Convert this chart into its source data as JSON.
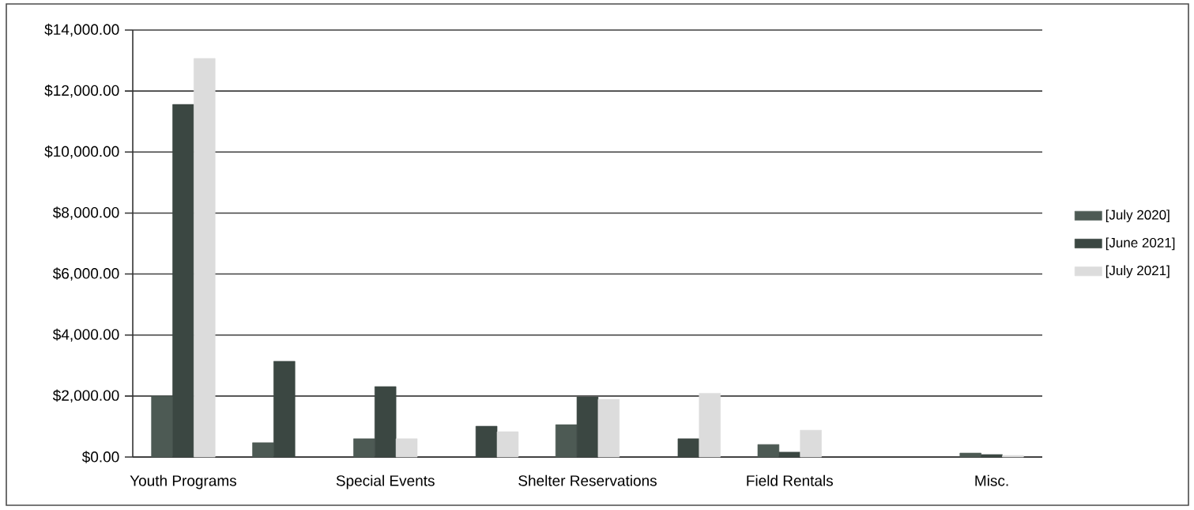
{
  "chart_data": {
    "type": "bar",
    "categories": [
      "Youth Programs",
      null,
      "Special Events",
      null,
      "Shelter Reservations",
      null,
      "Field Rentals",
      null,
      "Misc."
    ],
    "series": [
      {
        "name": "[July 2020]",
        "color": "#4d5a54",
        "values": [
          2000,
          470,
          600,
          null,
          1060,
          null,
          410,
          null,
          130
        ]
      },
      {
        "name": "[June 2021]",
        "color": "#3b4742",
        "values": [
          11560,
          3140,
          2310,
          1010,
          1970,
          600,
          160,
          null,
          80
        ]
      },
      {
        "name": "[July 2021]",
        "color": "#dcdcdc",
        "values": [
          13070,
          null,
          600,
          830,
          1890,
          2090,
          880,
          null,
          50
        ]
      }
    ],
    "ylim": [
      0,
      14000
    ],
    "yticks": [
      {
        "value": 0,
        "label": "$0.00"
      },
      {
        "value": 2000,
        "label": "$2,000.00"
      },
      {
        "value": 4000,
        "label": "$4,000.00"
      },
      {
        "value": 6000,
        "label": "$6,000.00"
      },
      {
        "value": 8000,
        "label": "$8,000.00"
      },
      {
        "value": 10000,
        "label": "$10,000.00"
      },
      {
        "value": 12000,
        "label": "$12,000.00"
      },
      {
        "value": 14000,
        "label": "$14,000.00"
      }
    ],
    "grid": "y",
    "legend": "right"
  }
}
